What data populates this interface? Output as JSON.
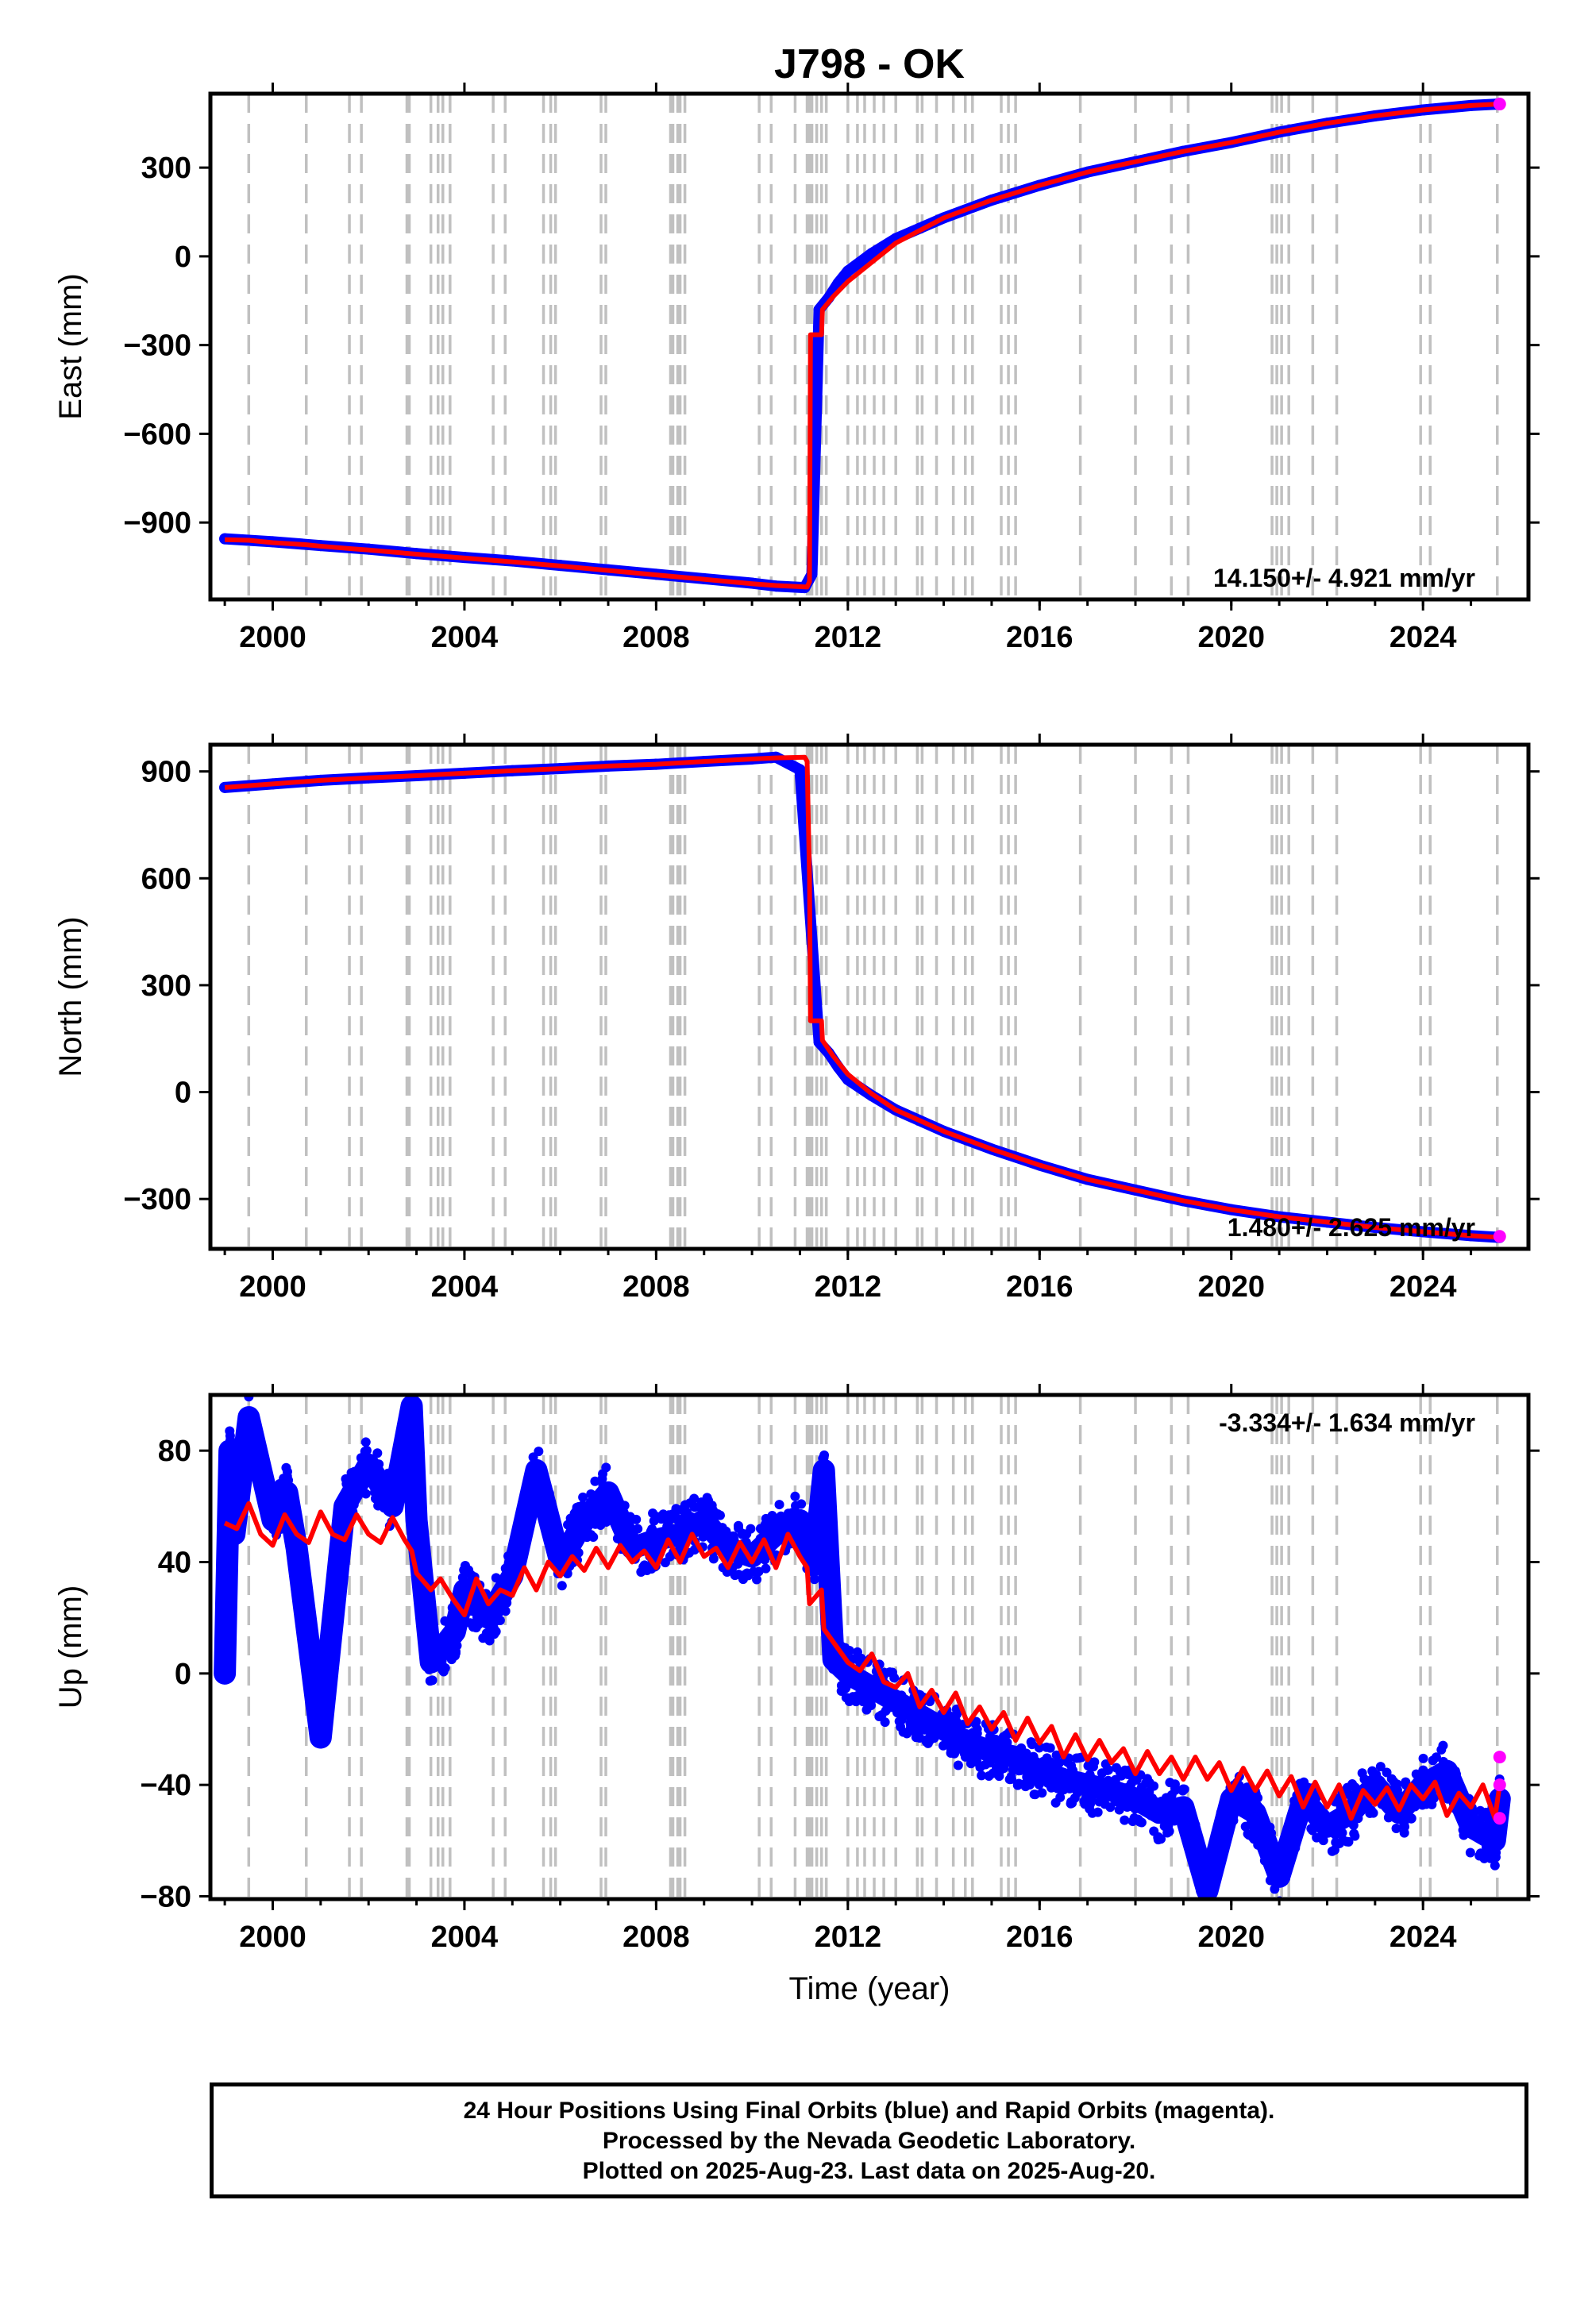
{
  "title": "J798 - OK",
  "xlabel": "Time (year)",
  "x_ticks": [
    2000,
    2004,
    2008,
    2012,
    2016,
    2020,
    2024
  ],
  "xlim": [
    1998.7,
    2026.2
  ],
  "colors": {
    "final_orbits": "#0000ff",
    "rapid_orbits": "#ff00ff",
    "model": "#ff0000",
    "step_lines": "#c0c0c0"
  },
  "equipment_change_years": [
    1999.5,
    2000.7,
    2001.6,
    2001.85,
    2002.8,
    2002.85,
    2003.3,
    2003.45,
    2003.55,
    2003.7,
    2004.6,
    2004.85,
    2005.65,
    2005.8,
    2005.9,
    2006.85,
    2006.95,
    2008.3,
    2008.35,
    2008.45,
    2008.5,
    2008.6,
    2010.15,
    2010.4,
    2010.9,
    2011.15,
    2011.2,
    2011.25,
    2011.35,
    2011.45,
    2011.55,
    2012.0,
    2012.2,
    2012.35,
    2012.55,
    2012.75,
    2013.0,
    2013.45,
    2013.55,
    2013.85,
    2014.2,
    2014.45,
    2014.6,
    2015.2,
    2015.35,
    2015.5,
    2016.85,
    2018.0,
    2018.75,
    2019.1,
    2020.85,
    2020.95,
    2021.05,
    2021.2,
    2021.7,
    2022.2,
    2023.95,
    2024.15,
    2025.55
  ],
  "chart_data": [
    {
      "type": "scatter",
      "panel": "east",
      "ylabel": "East (mm)",
      "y_ticks": [
        300,
        0,
        -300,
        -600,
        -900
      ],
      "ylim": [
        -1160,
        550
      ],
      "rate_text": "14.150+/- 4.921 mm/yr",
      "series": [
        {
          "role": "final_orbits",
          "x": [
            1999.0,
            2000.0,
            2001.0,
            2002.0,
            2003.0,
            2004.0,
            2005.0,
            2006.0,
            2007.0,
            2008.0,
            2009.0,
            2010.0,
            2010.5,
            2011.1,
            2011.25,
            2011.4,
            2011.6,
            2011.8,
            2012.0,
            2012.5,
            2013.0,
            2013.5,
            2014.0,
            2015.0,
            2016.0,
            2017.0,
            2018.0,
            2019.0,
            2020.0,
            2021.0,
            2022.0,
            2023.0,
            2024.0,
            2025.0,
            2025.6
          ],
          "y": [
            -955,
            -965,
            -978,
            -990,
            -1005,
            -1018,
            -1030,
            -1045,
            -1060,
            -1075,
            -1090,
            -1105,
            -1115,
            -1120,
            -1075,
            -180,
            -140,
            -90,
            -50,
            10,
            60,
            95,
            130,
            190,
            240,
            285,
            320,
            355,
            385,
            420,
            450,
            475,
            495,
            510,
            515
          ]
        },
        {
          "role": "rapid_orbits",
          "x": [
            2025.6
          ],
          "y": [
            515
          ]
        }
      ],
      "model": {
        "x": [
          1999.0,
          1999.5,
          2000.0,
          2000.7,
          2001.0,
          2001.6,
          2002.0,
          2003.0,
          2004.0,
          2005.0,
          2006.0,
          2007.0,
          2008.0,
          2009.0,
          2010.0,
          2010.5,
          2011.15,
          2011.2,
          2011.22,
          2011.45,
          2011.47,
          2011.7,
          2012.0,
          2012.5,
          2013.0,
          2014.0,
          2015.0,
          2016.0,
          2017.0,
          2018.0,
          2019.0,
          2020.0,
          2021.0,
          2022.0,
          2023.0,
          2024.0,
          2025.0,
          2025.6
        ],
        "y": [
          -958,
          -960,
          -968,
          -975,
          -980,
          -988,
          -993,
          -1007,
          -1020,
          -1033,
          -1047,
          -1062,
          -1077,
          -1092,
          -1107,
          -1113,
          -1118,
          -1100,
          -265,
          -265,
          -180,
          -135,
          -85,
          -20,
          45,
          130,
          190,
          240,
          285,
          320,
          355,
          385,
          420,
          450,
          475,
          495,
          510,
          515
        ]
      }
    },
    {
      "type": "scatter",
      "panel": "north",
      "ylabel": "North (mm)",
      "y_ticks": [
        900,
        600,
        300,
        0,
        -300
      ],
      "ylim": [
        -440,
        975
      ],
      "rate_text": "1.480+/- 2.625 mm/yr",
      "series": [
        {
          "role": "final_orbits",
          "x": [
            1999.0,
            2000.0,
            2001.0,
            2002.0,
            2003.0,
            2004.0,
            2005.0,
            2006.0,
            2007.0,
            2008.0,
            2009.0,
            2010.0,
            2010.5,
            2011.0,
            2011.4,
            2011.6,
            2011.8,
            2012.0,
            2012.5,
            2013.0,
            2014.0,
            2015.0,
            2016.0,
            2017.0,
            2018.0,
            2019.0,
            2020.0,
            2021.0,
            2022.0,
            2023.0,
            2024.0,
            2025.0,
            2025.6
          ],
          "y": [
            855,
            865,
            875,
            882,
            888,
            895,
            902,
            908,
            915,
            920,
            928,
            935,
            940,
            905,
            140,
            110,
            70,
            35,
            -10,
            -50,
            -110,
            -160,
            -205,
            -245,
            -275,
            -305,
            -330,
            -350,
            -365,
            -380,
            -392,
            -403,
            -408
          ]
        },
        {
          "role": "rapid_orbits",
          "x": [
            2025.6
          ],
          "y": [
            -405
          ]
        }
      ],
      "model": {
        "x": [
          1999.0,
          2000.0,
          2001.0,
          2002.0,
          2003.0,
          2004.0,
          2005.0,
          2006.0,
          2007.0,
          2008.0,
          2009.0,
          2010.0,
          2010.5,
          2011.1,
          2011.15,
          2011.2,
          2011.22,
          2011.45,
          2011.47,
          2011.7,
          2012.0,
          2012.5,
          2013.0,
          2014.0,
          2015.0,
          2016.0,
          2017.0,
          2018.0,
          2019.0,
          2020.0,
          2021.0,
          2022.0,
          2023.0,
          2024.0,
          2025.0,
          2025.6
        ],
        "y": [
          855,
          865,
          875,
          882,
          888,
          895,
          902,
          908,
          915,
          920,
          928,
          935,
          938,
          940,
          928,
          600,
          200,
          200,
          145,
          100,
          50,
          -5,
          -50,
          -110,
          -160,
          -205,
          -245,
          -275,
          -305,
          -330,
          -350,
          -365,
          -380,
          -392,
          -403,
          -408
        ]
      }
    },
    {
      "type": "scatter",
      "panel": "up",
      "ylabel": "Up (mm)",
      "y_ticks": [
        80,
        40,
        0,
        -40,
        -80
      ],
      "ylim": [
        -81,
        100
      ],
      "rate_text": "-3.334+/- 1.634 mm/yr",
      "series": [
        {
          "role": "final_orbits",
          "x": [
            1999.0,
            1999.1,
            1999.2,
            1999.5,
            2000.0,
            2000.3,
            2000.5,
            2001.0,
            2001.5,
            2002.0,
            2002.5,
            2002.9,
            2003.0,
            2003.3,
            2003.8,
            2004.0,
            2004.5,
            2005.0,
            2005.5,
            2006.0,
            2006.5,
            2007.0,
            2007.5,
            2008.0,
            2008.5,
            2009.0,
            2009.5,
            2010.0,
            2010.5,
            2011.0,
            2011.3,
            2011.5,
            2011.7,
            2012.0,
            2012.5,
            2013.0,
            2013.5,
            2014.0,
            2014.5,
            2015.0,
            2015.5,
            2016.0,
            2016.5,
            2017.0,
            2017.5,
            2018.0,
            2018.5,
            2019.0,
            2019.5,
            2020.0,
            2020.5,
            2021.0,
            2021.5,
            2022.0,
            2022.5,
            2023.0,
            2023.5,
            2024.0,
            2024.5,
            2025.0,
            2025.5,
            2025.6
          ],
          "y": [
            0,
            80,
            50,
            92,
            55,
            65,
            45,
            -23,
            60,
            75,
            60,
            96,
            55,
            4,
            15,
            30,
            20,
            35,
            73,
            40,
            55,
            65,
            45,
            48,
            50,
            55,
            45,
            42,
            50,
            55,
            40,
            73,
            5,
            0,
            -5,
            -10,
            -15,
            -20,
            -25,
            -28,
            -30,
            -35,
            -38,
            -40,
            -42,
            -45,
            -50,
            -48,
            -78,
            -45,
            -50,
            -73,
            -45,
            -55,
            -50,
            -40,
            -50,
            -40,
            -35,
            -55,
            -60,
            -45
          ]
        },
        {
          "role": "rapid_orbits",
          "x": [
            2025.6,
            2025.6,
            2025.6
          ],
          "y": [
            -30,
            -40,
            -52
          ]
        }
      ],
      "model": {
        "x": [
          1999.0,
          1999.25,
          1999.5,
          1999.75,
          2000.0,
          2000.25,
          2000.5,
          2000.75,
          2001.0,
          2001.25,
          2001.5,
          2001.75,
          2002.0,
          2002.25,
          2002.5,
          2002.75,
          2002.9,
          2003.0,
          2003.3,
          2003.5,
          2003.75,
          2004.0,
          2004.25,
          2004.5,
          2004.75,
          2005.0,
          2005.25,
          2005.5,
          2005.75,
          2006.0,
          2006.25,
          2006.5,
          2006.75,
          2007.0,
          2007.25,
          2007.5,
          2007.75,
          2008.0,
          2008.25,
          2008.5,
          2008.75,
          2009.0,
          2009.25,
          2009.5,
          2009.75,
          2010.0,
          2010.25,
          2010.5,
          2010.75,
          2011.0,
          2011.15,
          2011.2,
          2011.45,
          2011.5,
          2011.75,
          2012.0,
          2012.25,
          2012.5,
          2012.75,
          2013.0,
          2013.25,
          2013.5,
          2013.75,
          2014.0,
          2014.25,
          2014.5,
          2014.75,
          2015.0,
          2015.25,
          2015.5,
          2015.75,
          2016.0,
          2016.25,
          2016.5,
          2016.75,
          2017.0,
          2017.25,
          2017.5,
          2017.75,
          2018.0,
          2018.25,
          2018.5,
          2018.75,
          2019.0,
          2019.25,
          2019.5,
          2019.75,
          2020.0,
          2020.25,
          2020.5,
          2020.75,
          2021.0,
          2021.25,
          2021.5,
          2021.75,
          2022.0,
          2022.25,
          2022.5,
          2022.75,
          2023.0,
          2023.25,
          2023.5,
          2023.75,
          2024.0,
          2024.25,
          2024.5,
          2024.75,
          2025.0,
          2025.25,
          2025.5,
          2025.6
        ],
        "y": [
          54,
          52,
          61,
          50,
          46,
          57,
          50,
          47,
          58,
          50,
          48,
          57,
          50,
          47,
          56,
          48,
          44,
          36,
          30,
          34,
          27,
          21,
          34,
          25,
          30,
          28,
          38,
          30,
          40,
          35,
          42,
          37,
          45,
          38,
          46,
          40,
          44,
          38,
          48,
          40,
          50,
          42,
          45,
          38,
          47,
          40,
          48,
          38,
          50,
          42,
          38,
          25,
          30,
          16,
          10,
          4,
          1,
          7,
          -3,
          -5,
          0,
          -12,
          -6,
          -14,
          -7,
          -18,
          -12,
          -20,
          -14,
          -24,
          -16,
          -25,
          -19,
          -30,
          -22,
          -31,
          -24,
          -32,
          -27,
          -36,
          -28,
          -36,
          -30,
          -38,
          -30,
          -38,
          -32,
          -42,
          -34,
          -42,
          -35,
          -44,
          -37,
          -48,
          -39,
          -48,
          -40,
          -52,
          -42,
          -47,
          -41,
          -49,
          -40,
          -45,
          -39,
          -51,
          -43,
          -48,
          -40,
          -52,
          -40
        ]
      }
    }
  ],
  "footer": {
    "line1": "24 Hour Positions Using Final Orbits (blue) and Rapid Orbits (magenta).",
    "line2": "Processed by the Nevada Geodetic Laboratory.",
    "line3": "Plotted on 2025-Aug-23. Last data on 2025-Aug-20."
  }
}
